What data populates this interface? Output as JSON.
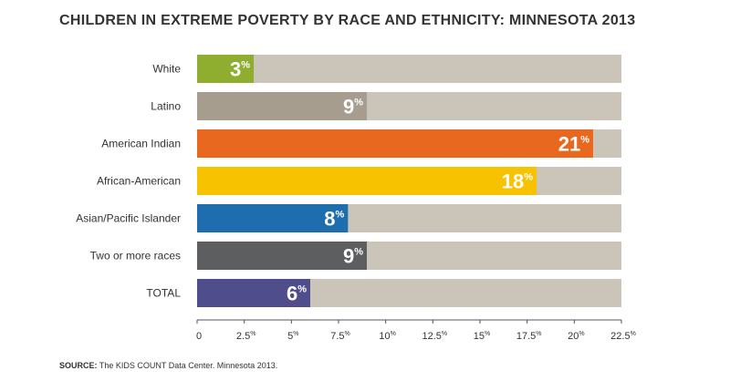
{
  "chart_data": {
    "type": "bar",
    "orientation": "horizontal",
    "title": "CHILDREN IN EXTREME POVERTY BY RACE AND ETHNICITY: MINNESOTA 2013",
    "categories": [
      "White",
      "Latino",
      "American Indian",
      "African-American",
      "Asian/Pacific Islander",
      "Two or more races",
      "TOTAL"
    ],
    "values": [
      3,
      9,
      21,
      18,
      8,
      9,
      6
    ],
    "value_labels": [
      "3",
      "9",
      "21",
      "18",
      "8",
      "9",
      "6"
    ],
    "value_suffix": "%",
    "colors": [
      "#8fae2f",
      "#a69d8e",
      "#e8681f",
      "#f7c200",
      "#1e6eaf",
      "#5d5e60",
      "#4f4d8b"
    ],
    "track_color": "#cbc4b8",
    "xlim": [
      0,
      22.5
    ],
    "xticks": [
      0,
      2.5,
      5,
      7.5,
      10,
      12.5,
      15,
      17.5,
      20,
      22.5
    ],
    "xtick_labels": [
      "0",
      "2.5",
      "5",
      "7.5",
      "10",
      "12.5",
      "15",
      "17.5",
      "20",
      "22.5"
    ],
    "tick_suffix": "%",
    "grid": false,
    "legend": "none"
  },
  "source": {
    "label": "SOURCE:",
    "text": " The KIDS COUNT Data Center. Minnesota 2013."
  }
}
